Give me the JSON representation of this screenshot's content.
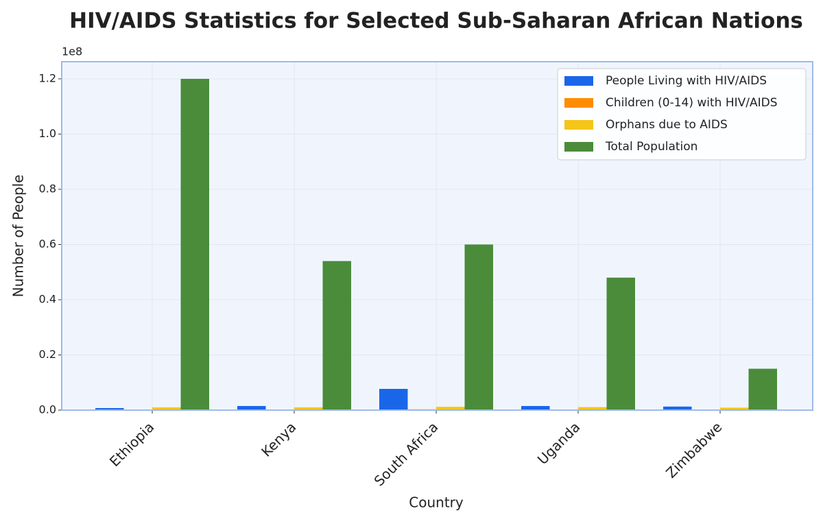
{
  "chart_data": {
    "type": "bar",
    "title": "HIV/AIDS Statistics for Selected Sub-Saharan African Nations",
    "x_label": "Country",
    "y_label": "Number of People",
    "y_offset_label": "1e8",
    "categories": [
      "Ethiopia",
      "Kenya",
      "South Africa",
      "Uganda",
      "Zimbabwe"
    ],
    "series": [
      {
        "name": "People Living with HIV/AIDS",
        "color": "#1a66e8",
        "values": [
          750000,
          1500000,
          7700000,
          1500000,
          1300000
        ]
      },
      {
        "name": "Children (0-14) with HIV/AIDS",
        "color": "#ff8c00",
        "values": [
          100000,
          100000,
          300000,
          100000,
          100000
        ]
      },
      {
        "name": "Orphans due to AIDS",
        "color": "#f5c518",
        "values": [
          1000000,
          1000000,
          1200000,
          1100000,
          900000
        ]
      },
      {
        "name": "Total Population",
        "color": "#4a8c3a",
        "values": [
          120000000,
          54000000,
          60000000,
          48000000,
          15000000
        ]
      }
    ],
    "ylim": [
      0,
      126200000
    ],
    "yticks": [
      {
        "value": 0,
        "label": "0.0"
      },
      {
        "value": 20000000,
        "label": "0.2"
      },
      {
        "value": 40000000,
        "label": "0.4"
      },
      {
        "value": 60000000,
        "label": "0.6"
      },
      {
        "value": 80000000,
        "label": "0.8"
      },
      {
        "value": 100000000,
        "label": "1.0"
      },
      {
        "value": 120000000,
        "label": "1.2"
      }
    ],
    "grid": true,
    "legend_position": "upper-right"
  }
}
